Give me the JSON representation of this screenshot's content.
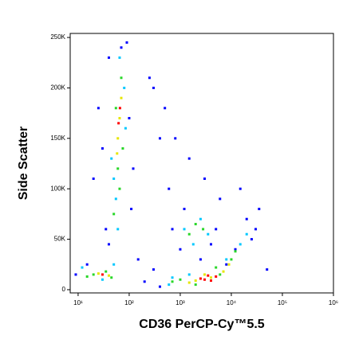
{
  "chart_data": {
    "type": "scatter",
    "x_label": "CD36 PerCP-Cy™5.5",
    "y_label": "Side Scatter",
    "xscale": "log",
    "xlim": [
      7,
      1000000
    ],
    "ylim": [
      -3200,
      254000
    ],
    "xticks": [
      {
        "value": 10,
        "label": "10¹"
      },
      {
        "value": 100,
        "label": "10²"
      },
      {
        "value": 1000,
        "label": "10³"
      },
      {
        "value": 10000,
        "label": "10⁴"
      },
      {
        "value": 100000,
        "label": "10⁵"
      },
      {
        "value": 1000000,
        "label": "10⁶"
      }
    ],
    "yticks": [
      0,
      {
        "value": 50000,
        "label": "50K"
      },
      {
        "value": 100000,
        "label": "100K"
      },
      {
        "value": 150000,
        "label": "150K"
      },
      {
        "value": 200000,
        "label": "200K"
      },
      {
        "value": 250000,
        "label": "250K"
      }
    ],
    "series": [
      {
        "color": "#0000ff",
        "x": [
          40,
          90,
          120,
          30,
          25,
          110,
          35,
          300,
          500,
          800,
          1500,
          3000,
          6000,
          15000,
          20000,
          40,
          70,
          150,
          300,
          600,
          1000,
          2500,
          5000,
          12000,
          25000,
          35000,
          9,
          15,
          200,
          400,
          8000,
          400,
          250,
          1200,
          50000,
          100,
          20,
          700,
          4000,
          30000
        ],
        "values": [
          230000,
          245000,
          120000,
          140000,
          180000,
          80000,
          60000,
          200000,
          180000,
          150000,
          130000,
          110000,
          90000,
          100000,
          70000,
          45000,
          240000,
          30000,
          20000,
          100000,
          40000,
          30000,
          60000,
          40000,
          50000,
          80000,
          15000,
          25000,
          8000,
          3000,
          25000,
          150000,
          210000,
          80000,
          20000,
          170000,
          110000,
          60000,
          45000,
          60000
        ]
      },
      {
        "color": "#00c8ff",
        "x": [
          45,
          80,
          55,
          65,
          50,
          85,
          1200,
          2500,
          1800,
          3500,
          12,
          30,
          50,
          600,
          1500,
          8000,
          15000,
          20000,
          700,
          60
        ],
        "values": [
          130000,
          200000,
          90000,
          230000,
          110000,
          160000,
          60000,
          70000,
          45000,
          55000,
          22000,
          10000,
          25000,
          5000,
          15000,
          30000,
          45000,
          55000,
          12000,
          60000
        ]
      },
      {
        "color": "#28d728",
        "x": [
          60,
          70,
          55,
          75,
          65,
          2000,
          1500,
          2800,
          20,
          35,
          45,
          15,
          1000,
          5000,
          10000,
          2000,
          12000,
          50,
          700,
          6000
        ],
        "values": [
          120000,
          210000,
          180000,
          140000,
          100000,
          65000,
          55000,
          60000,
          15000,
          18000,
          12000,
          13000,
          10000,
          22000,
          30000,
          5000,
          38000,
          75000,
          8000,
          15000
        ]
      },
      {
        "color": "#e6e600",
        "x": [
          65,
          60,
          70,
          58,
          25,
          40,
          4000,
          2000,
          7000,
          1500,
          3000,
          9000
        ],
        "values": [
          170000,
          150000,
          190000,
          135000,
          16000,
          14000,
          12000,
          9000,
          18000,
          7000,
          15000,
          25000
        ]
      },
      {
        "color": "#ff0000",
        "x": [
          62,
          66,
          3000,
          4000,
          2500,
          5000,
          30,
          3500
        ],
        "values": [
          165000,
          180000,
          10000,
          9000,
          11000,
          13000,
          15000,
          14000
        ]
      }
    ]
  }
}
